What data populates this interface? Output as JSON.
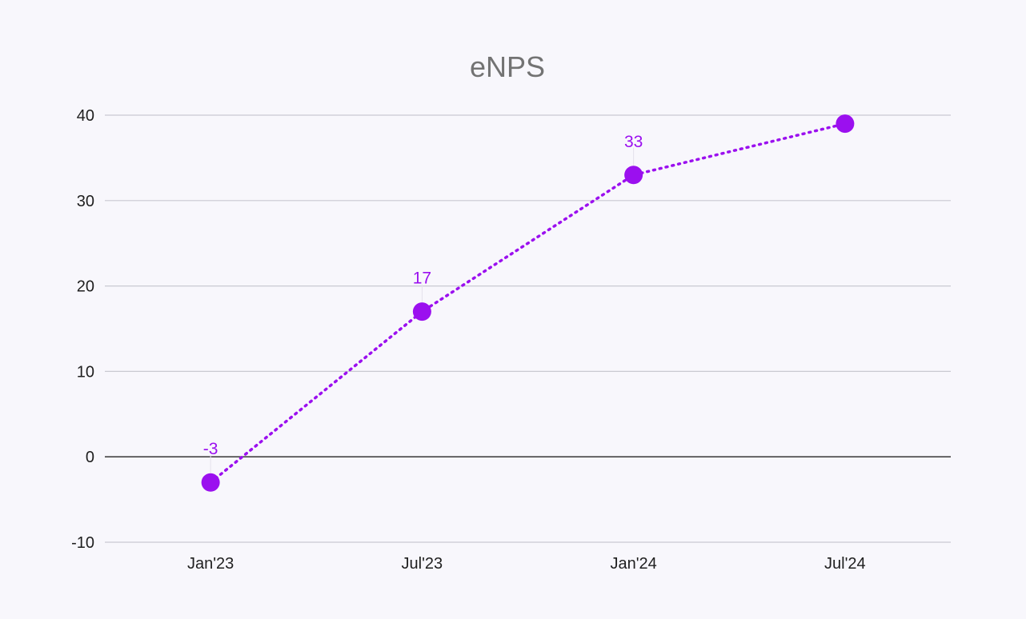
{
  "chart_data": {
    "type": "line",
    "title": "eNPS",
    "xlabel": "",
    "ylabel": "",
    "categories": [
      "Jan'23",
      "Jul'23",
      "Jan'24",
      "Jul'24"
    ],
    "series": [
      {
        "values": [
          -3,
          17,
          33,
          39
        ],
        "data_labels": [
          "-3",
          "17",
          "33",
          ""
        ],
        "color": "#9b10ef",
        "line_style": "dotted",
        "marker": "circle"
      }
    ],
    "ylim": [
      -10,
      40
    ],
    "yticks": [
      -10,
      0,
      10,
      20,
      30,
      40
    ],
    "ytick_labels": [
      "-10",
      "0",
      "10",
      "20",
      "30",
      "40"
    ],
    "grid": true,
    "legend": "none",
    "colors": {
      "background": "#f8f7fc",
      "grid": "#c9c9d1",
      "zero_line": "#444444",
      "title": "#737373",
      "tick_text": "#1f1f1f"
    }
  }
}
